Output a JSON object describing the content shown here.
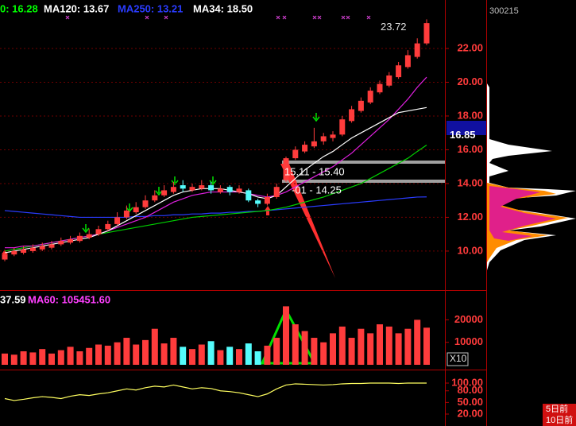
{
  "chart_data": [
    {
      "type": "candlestick",
      "legend": [
        {
          "text": "0: 16.28",
          "color": "#00ff00"
        },
        {
          "text": "MA120: 13.67",
          "color": "#ffffff"
        },
        {
          "text": "MA250: 13.21",
          "color": "#2a3cff"
        },
        {
          "text": "MA34: 18.50",
          "color": "#ffffff"
        }
      ],
      "code": "300215",
      "price_marker": 16.85,
      "range_labels": [
        "15.11 - 15.40",
        "-01 - 14.25"
      ],
      "up_color": "#ff3c3c",
      "down_color": "#54fcfc",
      "ylim": [
        7.69,
        24.87
      ],
      "yticks": [
        {
          "value": 10,
          "label": "10.00"
        },
        {
          "value": 12,
          "label": "12.00"
        },
        {
          "value": 14,
          "label": "14.00"
        },
        {
          "value": 16,
          "label": "16.00"
        },
        {
          "value": 18,
          "label": "18.00"
        },
        {
          "value": 20,
          "label": "20.00"
        },
        {
          "value": 22,
          "label": "22.00"
        }
      ],
      "grid": true,
      "open": [
        9.5,
        9.8,
        9.9,
        10.0,
        10.1,
        10.2,
        10.4,
        10.5,
        10.6,
        10.8,
        11.0,
        11.3,
        11.6,
        12.0,
        12.3,
        12.6,
        13.0,
        13.3,
        13.5,
        13.9,
        13.6,
        13.7,
        13.9,
        13.5,
        13.8,
        13.5,
        13.6,
        13.0,
        12.8,
        13.2,
        14.2,
        15.5,
        15.9,
        16.2,
        16.5,
        16.7,
        16.9,
        17.7,
        18.3,
        18.8,
        19.4,
        19.8,
        20.3,
        20.9,
        21.5,
        22.3
      ],
      "high": [
        9.9,
        10.2,
        10.3,
        10.4,
        10.5,
        10.6,
        10.8,
        10.9,
        11.1,
        11.3,
        11.5,
        11.8,
        12.3,
        12.7,
        12.9,
        13.3,
        13.6,
        13.9,
        14.1,
        14.2,
        14.0,
        14.2,
        14.1,
        13.9,
        13.9,
        13.9,
        13.7,
        13.1,
        13.4,
        14.0,
        15.6,
        16.2,
        16.5,
        17.3,
        17.0,
        17.1,
        18.0,
        18.6,
        19.1,
        19.7,
        20.1,
        20.6,
        21.2,
        21.9,
        22.6,
        23.72
      ],
      "low": [
        9.4,
        9.7,
        9.8,
        9.9,
        10.0,
        10.1,
        10.3,
        10.4,
        10.5,
        10.7,
        10.9,
        11.2,
        11.5,
        11.9,
        12.2,
        12.5,
        12.9,
        13.2,
        13.4,
        13.5,
        13.5,
        13.6,
        13.4,
        13.4,
        13.3,
        13.4,
        12.9,
        12.6,
        12.7,
        13.1,
        14.1,
        15.4,
        15.8,
        16.1,
        16.3,
        16.5,
        16.8,
        17.6,
        18.2,
        18.7,
        19.3,
        19.7,
        20.2,
        20.8,
        21.4,
        22.2
      ],
      "close": [
        9.8,
        10.0,
        10.1,
        10.2,
        10.3,
        10.4,
        10.6,
        10.7,
        10.9,
        11.0,
        11.3,
        11.6,
        12.0,
        12.4,
        12.6,
        13.0,
        13.3,
        13.6,
        13.8,
        13.7,
        13.8,
        13.9,
        13.6,
        13.7,
        13.5,
        13.7,
        13.0,
        12.8,
        13.2,
        13.8,
        15.5,
        16.0,
        16.3,
        16.5,
        16.8,
        16.9,
        17.8,
        18.4,
        18.9,
        19.5,
        19.9,
        20.4,
        21.0,
        21.6,
        22.3,
        23.5
      ],
      "ma_lines": [
        {
          "color": "#2a3cff",
          "values": [
            12.4,
            12.35,
            12.3,
            12.25,
            12.2,
            12.15,
            12.1,
            12.05,
            12.0,
            12.0,
            12.0,
            12.0,
            12.0,
            12.0,
            12.05,
            12.05,
            12.1,
            12.1,
            12.15,
            12.15,
            12.2,
            12.2,
            12.25,
            12.25,
            12.3,
            12.3,
            12.35,
            12.35,
            12.4,
            12.45,
            12.5,
            12.55,
            12.6,
            12.65,
            12.7,
            12.75,
            12.8,
            12.85,
            12.9,
            12.95,
            13.0,
            13.05,
            13.1,
            13.15,
            13.2,
            13.21
          ]
        },
        {
          "color": "#00d000",
          "values": [
            10.0,
            10.1,
            10.2,
            10.3,
            10.4,
            10.5,
            10.6,
            10.7,
            10.8,
            10.9,
            11.0,
            11.1,
            11.2,
            11.3,
            11.4,
            11.5,
            11.6,
            11.7,
            11.8,
            11.9,
            12.0,
            12.05,
            12.1,
            12.15,
            12.2,
            12.25,
            12.3,
            12.35,
            12.4,
            12.5,
            12.6,
            12.75,
            12.9,
            13.05,
            13.2,
            13.4,
            13.6,
            13.8,
            14.0,
            14.3,
            14.6,
            14.9,
            15.2,
            15.5,
            15.9,
            16.28
          ]
        },
        {
          "color": "#e020e0",
          "values": [
            10.2,
            10.2,
            10.3,
            10.3,
            10.4,
            10.5,
            10.6,
            10.7,
            10.8,
            10.9,
            11.0,
            11.2,
            11.4,
            11.6,
            11.8,
            12.0,
            12.3,
            12.6,
            12.9,
            13.1,
            13.3,
            13.4,
            13.5,
            13.5,
            13.5,
            13.5,
            13.4,
            13.3,
            13.2,
            13.3,
            13.5,
            13.8,
            14.1,
            14.4,
            14.7,
            15.0,
            15.4,
            15.8,
            16.3,
            16.8,
            17.3,
            17.8,
            18.4,
            19.0,
            19.7,
            20.3
          ]
        },
        {
          "color": "#ffffff",
          "values": [
            9.9,
            10.0,
            10.1,
            10.2,
            10.3,
            10.4,
            10.5,
            10.6,
            10.7,
            10.8,
            11.0,
            11.2,
            11.5,
            11.8,
            12.1,
            12.4,
            12.7,
            13.0,
            13.3,
            13.5,
            13.6,
            13.7,
            13.7,
            13.7,
            13.6,
            13.5,
            13.4,
            13.2,
            13.1,
            13.3,
            13.8,
            14.3,
            14.8,
            15.2,
            15.6,
            15.9,
            16.3,
            16.7,
            17.0,
            17.3,
            17.6,
            17.9,
            18.2,
            18.3,
            18.4,
            18.5
          ]
        }
      ]
    },
    {
      "type": "bar",
      "legend": [
        {
          "text": "37.59",
          "color": "#ffffff"
        },
        {
          "text": "MA60: 105451.60",
          "color": "#ff40ff"
        }
      ],
      "scale_label": "X10",
      "values": [
        5000,
        4500,
        6000,
        5500,
        7000,
        5000,
        6500,
        8000,
        6000,
        7500,
        9000,
        8500,
        10000,
        12000,
        9000,
        11000,
        16000,
        9500,
        12000,
        8000,
        7000,
        9000,
        10500,
        6500,
        8000,
        7000,
        9500,
        6000,
        8500,
        12000,
        26000,
        18000,
        15000,
        12000,
        10000,
        14000,
        17000,
        12000,
        16000,
        14000,
        18000,
        17000,
        14000,
        16000,
        20000,
        16500
      ],
      "ylim": [
        -357,
        32857
      ],
      "yticks": [
        10000,
        20000
      ]
    },
    {
      "type": "line",
      "color": "#ffff60",
      "values": [
        60,
        55,
        58,
        62,
        65,
        63,
        60,
        66,
        70,
        68,
        72,
        75,
        80,
        85,
        82,
        88,
        92,
        90,
        95,
        90,
        85,
        88,
        86,
        80,
        78,
        75,
        70,
        65,
        72,
        85,
        95,
        98,
        97,
        96,
        95,
        96,
        98,
        99,
        99,
        100,
        100,
        100,
        99,
        100,
        100,
        100
      ],
      "ylim": [
        -10.8,
        132.8
      ],
      "yticks": [
        {
          "value": 20,
          "label": "20.00"
        },
        {
          "value": 50,
          "label": "50.00"
        },
        {
          "value": 80,
          "label": "80.00"
        },
        {
          "value": 100,
          "label": "100.00"
        }
      ],
      "buttons": [
        "5日前",
        "10日前"
      ]
    }
  ]
}
